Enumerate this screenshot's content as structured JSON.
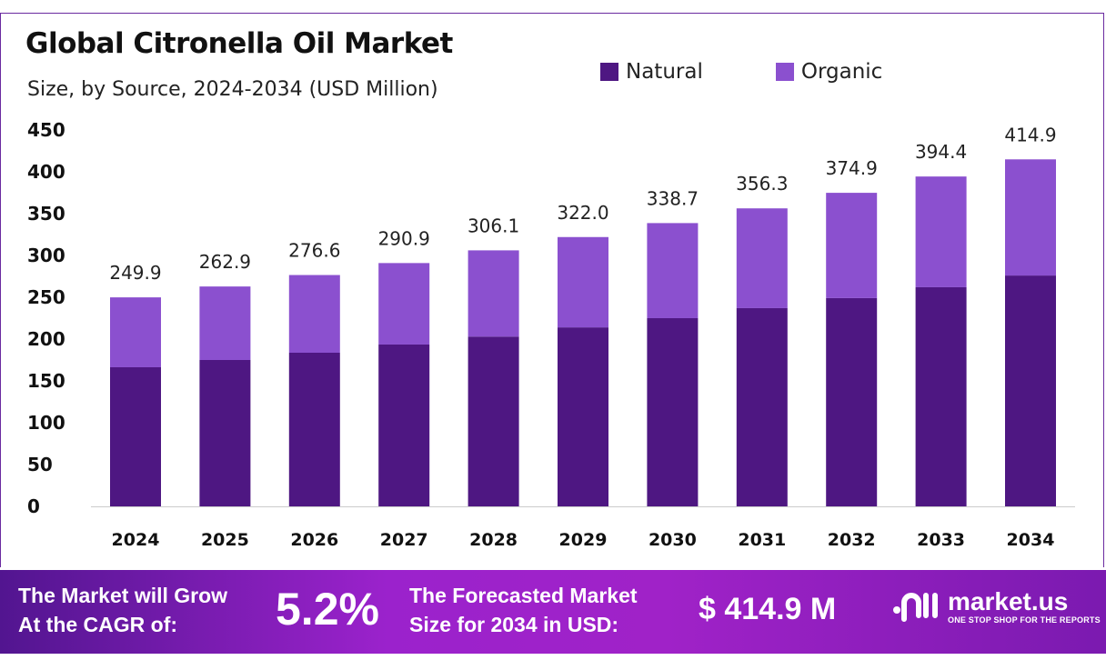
{
  "header": {
    "title": "Global Citronella Oil Market",
    "subtitle": "Size, by Source, 2024-2034 (USD Million)"
  },
  "colors": {
    "natural": "#4e1782",
    "organic": "#8b50cf",
    "axis": "#cccccc"
  },
  "chart_data": {
    "type": "bar",
    "stacked": true,
    "title": "Global Citronella Oil Market",
    "subtitle": "Size, by Source, 2024-2034 (USD Million)",
    "xlabel": "",
    "ylabel": "",
    "ylim": [
      0,
      450
    ],
    "yticks": [
      "0",
      "50",
      "100",
      "150",
      "200",
      "250",
      "300",
      "350",
      "400",
      "450"
    ],
    "categories": [
      "2024",
      "2025",
      "2026",
      "2027",
      "2028",
      "2029",
      "2030",
      "2031",
      "2032",
      "2033",
      "2034"
    ],
    "series": [
      {
        "name": "Natural",
        "values": [
          166.3,
          175.0,
          183.7,
          193.5,
          203.0,
          214.0,
          225.0,
          237.0,
          249.0,
          262.0,
          276.0
        ]
      },
      {
        "name": "Organic",
        "values": [
          83.6,
          87.9,
          92.9,
          97.4,
          103.1,
          108.0,
          113.7,
          119.3,
          125.9,
          132.4,
          138.9
        ]
      }
    ],
    "totals": [
      "249.9",
      "262.9",
      "276.6",
      "290.9",
      "306.1",
      "322.0",
      "338.7",
      "356.3",
      "374.9",
      "394.4",
      "414.9"
    ],
    "legend": "top-right",
    "grid": false
  },
  "footer": {
    "cagr_label_1": "The Market will Grow",
    "cagr_label_2": "At the CAGR of:",
    "cagr_value": "5.2%",
    "forecast_label_1": "The Forecasted Market",
    "forecast_label_2": "Size for 2034 in USD:",
    "forecast_value": "$ 414.9 M",
    "brand": "market.us",
    "tagline": "ONE STOP SHOP FOR THE REPORTS"
  }
}
